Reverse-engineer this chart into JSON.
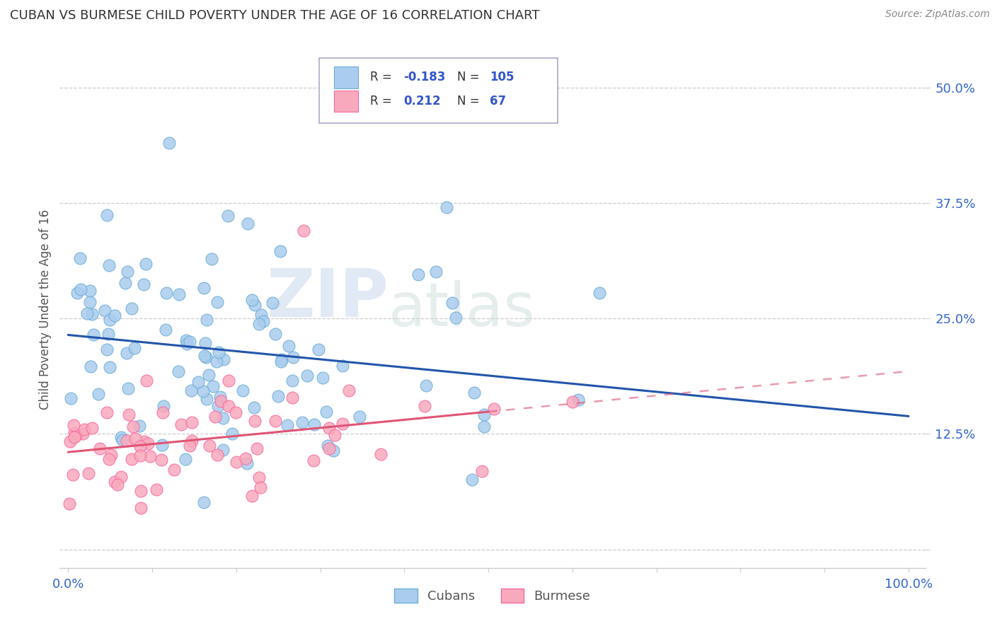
{
  "title": "CUBAN VS BURMESE CHILD POVERTY UNDER THE AGE OF 16 CORRELATION CHART",
  "source": "Source: ZipAtlas.com",
  "ylabel": "Child Poverty Under the Age of 16",
  "cuban_color": "#6baed6",
  "burmese_color": "#f768a1",
  "cuban_line_color": "#2255aa",
  "burmese_line_color": "#e05575",
  "cuban_scatter_fill": "#aaccee",
  "burmese_scatter_fill": "#f8aabc",
  "background_color": "#ffffff",
  "watermark_zip": "ZIP",
  "watermark_atlas": "atlas",
  "corr_cuban_R": "-0.183",
  "corr_cuban_N": "105",
  "corr_burmese_R": "0.212",
  "corr_burmese_N": "67",
  "ytick_vals": [
    0.0,
    0.125,
    0.25,
    0.375,
    0.5
  ],
  "ytick_labels": [
    "",
    "12.5%",
    "25.0%",
    "37.5%",
    "50.0%"
  ],
  "xtick_labels": [
    "0.0%",
    "",
    "",
    "",
    "",
    "",
    "",
    "",
    "",
    "",
    "100.0%"
  ],
  "ylim": [
    -0.02,
    0.54
  ],
  "xlim": [
    -0.01,
    1.02
  ],
  "cuban_seed": 12,
  "burmese_seed": 7
}
